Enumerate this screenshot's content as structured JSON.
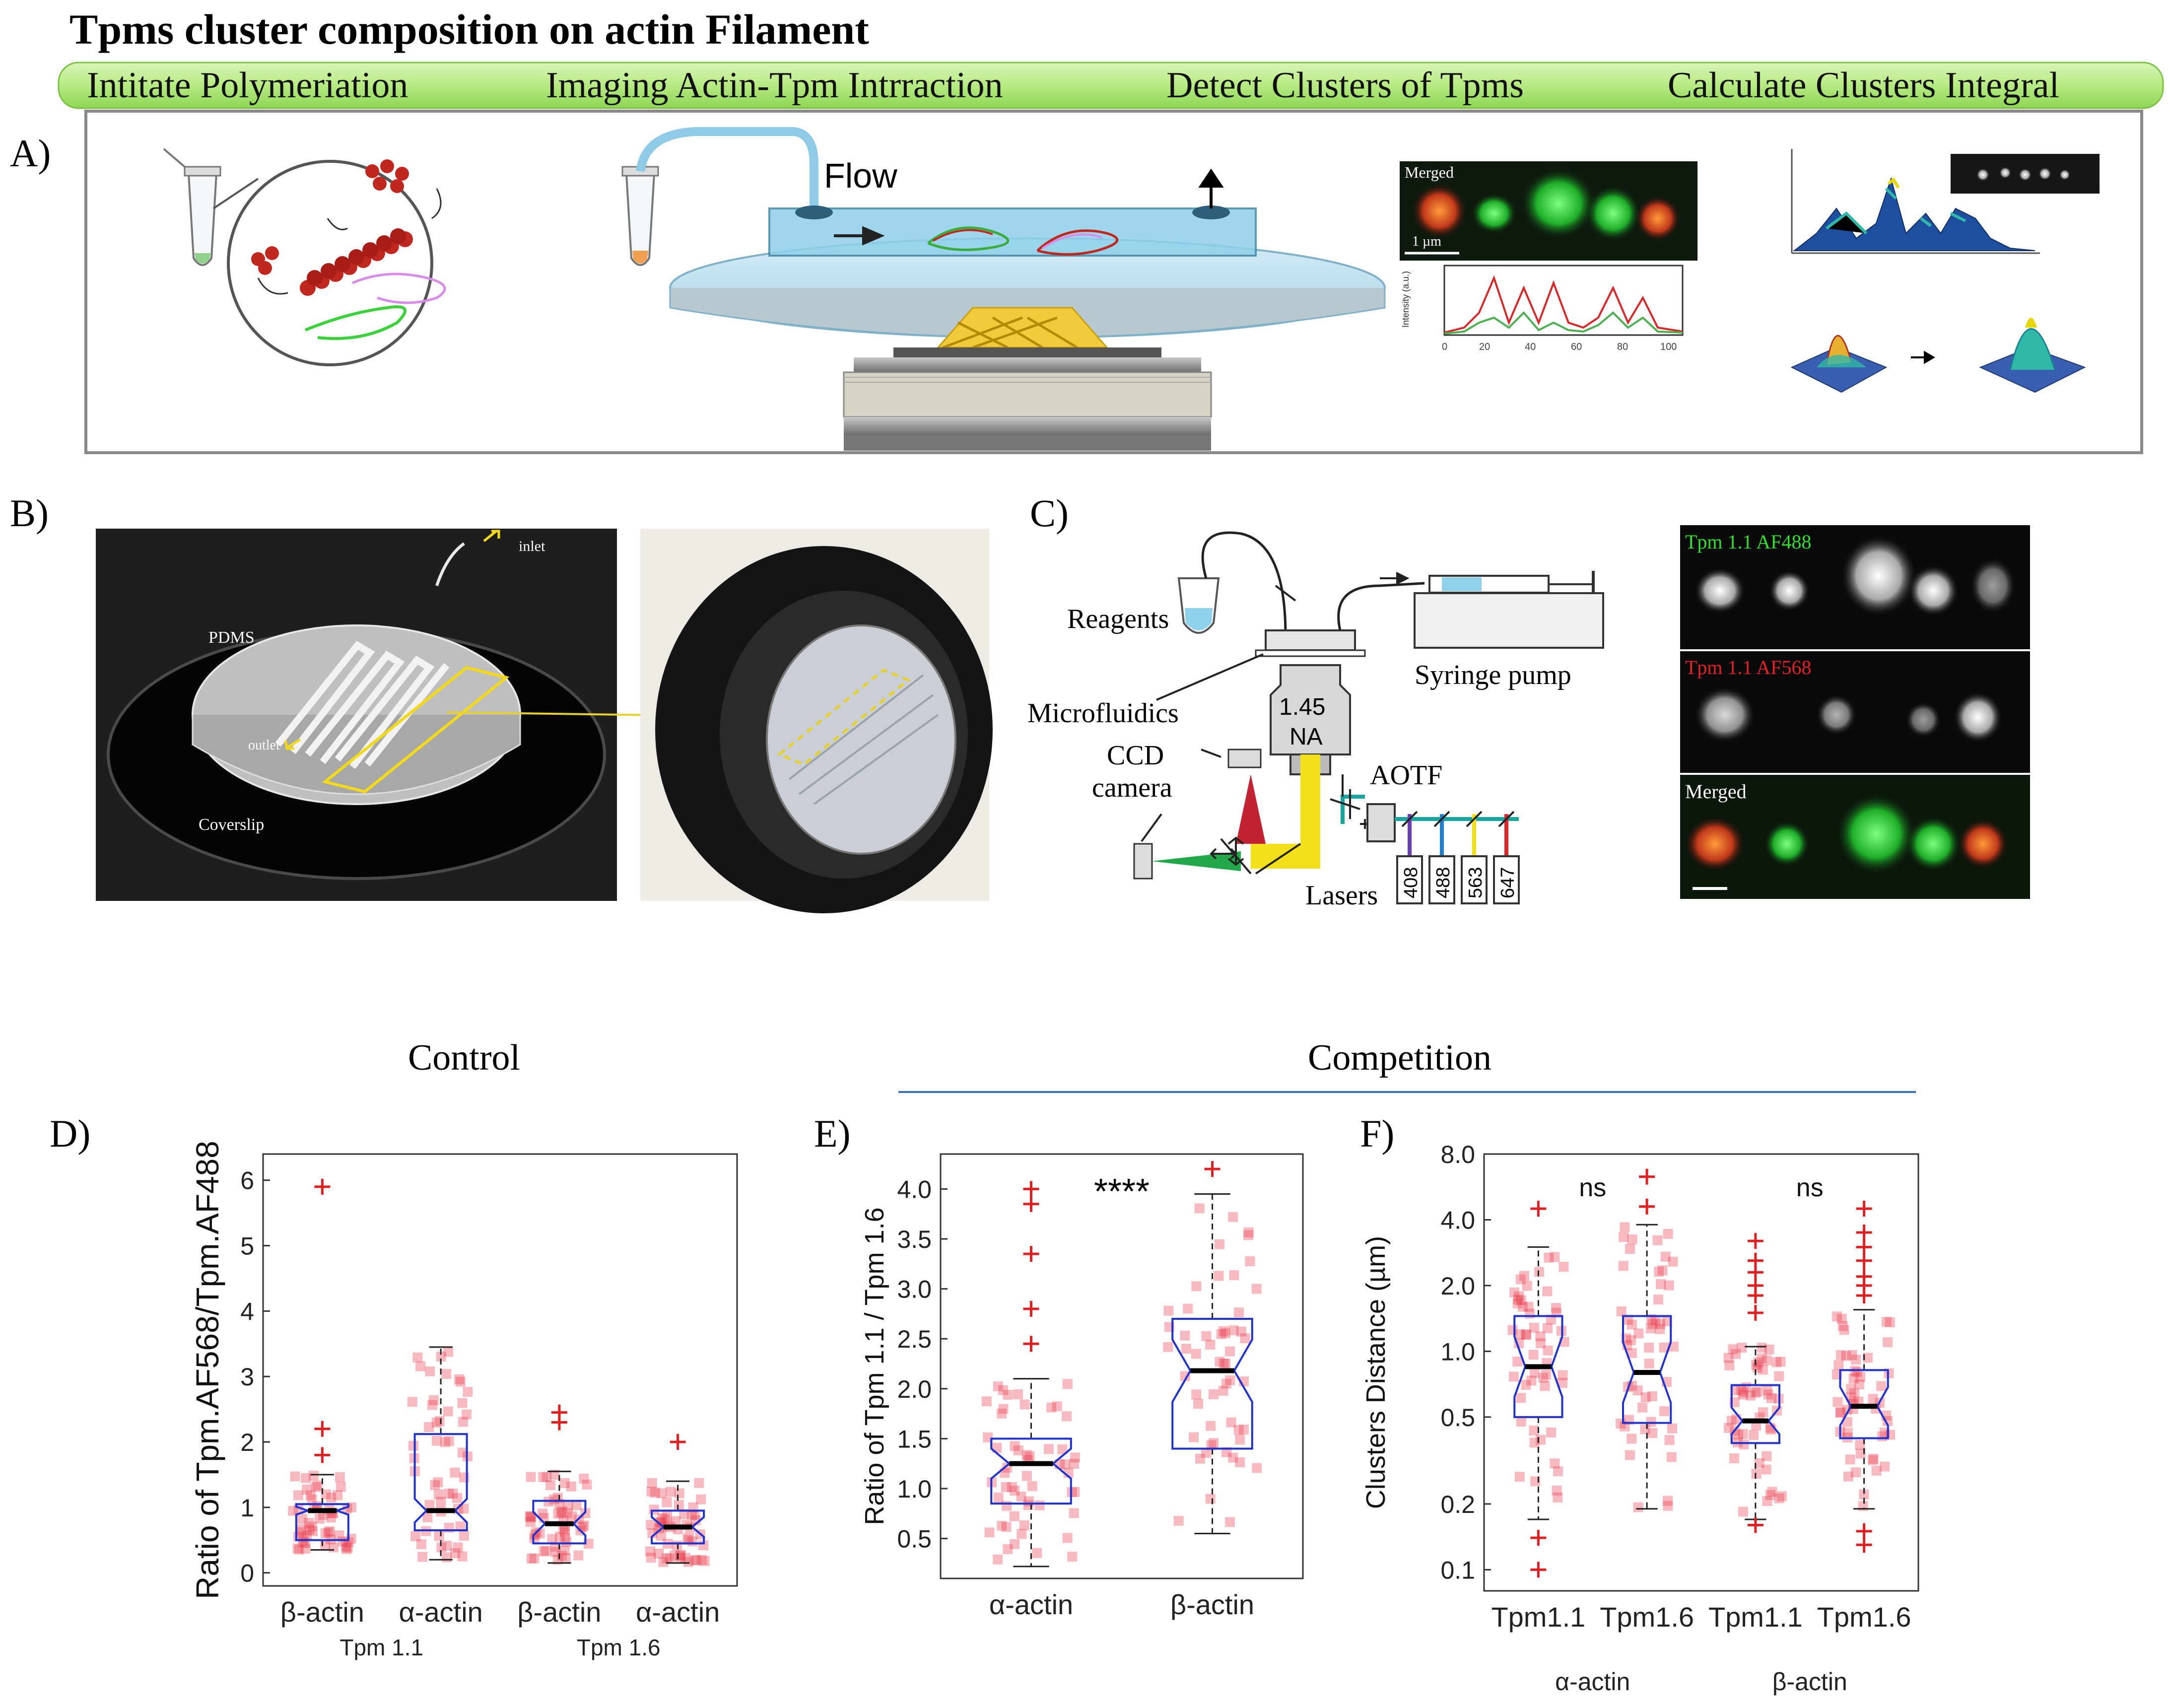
{
  "title": "Tpms cluster composition on actin Filament",
  "steps": [
    "Intitate Polymeriation",
    "Imaging Actin-Tpm Intrraction",
    "Detect Clusters of Tpms",
    "Calculate Clusters Integral"
  ],
  "panel_letters": {
    "A": "A)",
    "B": "B)",
    "C": "C)",
    "D": "D)",
    "E": "E)",
    "F": "F)"
  },
  "panelA": {
    "flow_label": "Flow",
    "merged_label": "Merged",
    "scale_label": "1 µm",
    "intensity_axis": "Intensity (a.u.)",
    "x_ticks": [
      "0",
      "20",
      "40",
      "60",
      "80",
      "100"
    ]
  },
  "panelB": {
    "inlet": "inlet",
    "pdms": "PDMS",
    "outlet": "outlet",
    "coverslip": "Coverslip"
  },
  "panelC": {
    "reagents": "Reagents",
    "syringe_pump": "Syringe pump",
    "microfluidics": "Microfluidics",
    "objective_top": "1.45",
    "objective_bottom": "NA",
    "ccd_line1": "CCD",
    "ccd_line2": "camera",
    "aotf": "AOTF",
    "lasers": "Lasers",
    "laser_lines": [
      "408",
      "488",
      "563",
      "647"
    ],
    "channel_labels": [
      "Tpm 1.1 AF488",
      "Tpm 1.1 AF568",
      "Merged"
    ]
  },
  "section_titles": {
    "control": "Control",
    "competition": "Competition"
  },
  "chart_data": [
    {
      "id": "D",
      "type": "box",
      "ylabel": "Ratio of Tpm.AF568/Tpm.AF488",
      "ylim": [
        -0.2,
        6.4
      ],
      "yticks": [
        0,
        1,
        2,
        3,
        4,
        5,
        6
      ],
      "categories": [
        "β-actin",
        "α-actin",
        "β-actin",
        "α-actin"
      ],
      "groups": [
        "Tpm 1.1",
        "Tpm 1.6"
      ],
      "boxes": [
        {
          "q1": 0.5,
          "median": 0.95,
          "q3": 1.05,
          "whisker_low": 0.35,
          "whisker_high": 1.5,
          "outliers": [
            5.9,
            2.2,
            1.8
          ]
        },
        {
          "q1": 0.65,
          "median": 0.95,
          "q3": 2.12,
          "whisker_low": 0.2,
          "whisker_high": 3.45,
          "outliers": []
        },
        {
          "q1": 0.45,
          "median": 0.75,
          "q3": 1.1,
          "whisker_low": 0.15,
          "whisker_high": 1.55,
          "outliers": [
            2.45,
            2.3
          ]
        },
        {
          "q1": 0.45,
          "median": 0.7,
          "q3": 0.95,
          "whisker_low": 0.15,
          "whisker_high": 1.4,
          "outliers": [
            2.0
          ]
        }
      ]
    },
    {
      "id": "E",
      "type": "box",
      "ylabel": "Ratio of Tpm 1.1 / Tpm 1.6",
      "ylim": [
        0.1,
        4.35
      ],
      "yticks": [
        0.5,
        1.0,
        1.5,
        2.0,
        2.5,
        3.0,
        3.5,
        4.0
      ],
      "ytick_labels": [
        "0.5",
        "1.0",
        "1.5",
        "2.0",
        "2.5",
        "3.0",
        "3.5",
        "4.0"
      ],
      "categories": [
        "α-actin",
        "β-actin"
      ],
      "significance": "****",
      "boxes": [
        {
          "q1": 0.85,
          "median": 1.25,
          "q3": 1.5,
          "whisker_low": 0.22,
          "whisker_high": 2.1,
          "outliers": [
            4.0,
            3.85,
            3.35,
            2.8,
            2.45
          ]
        },
        {
          "q1": 1.4,
          "median": 2.18,
          "q3": 2.7,
          "whisker_low": 0.55,
          "whisker_high": 3.95,
          "outliers": [
            4.2
          ]
        }
      ]
    },
    {
      "id": "F",
      "type": "box",
      "scale": "log",
      "ylabel": "Clusters Distance (µm)",
      "ylim": [
        0.08,
        8.0
      ],
      "yticks": [
        0.1,
        0.2,
        0.5,
        1.0,
        2.0,
        4.0,
        8.0
      ],
      "ytick_labels": [
        "0.1",
        "0.2",
        "0.5",
        "1.0",
        "2.0",
        "4.0",
        "8.0"
      ],
      "categories": [
        "Tpm1.1",
        "Tpm1.6",
        "Tpm1.1",
        "Tpm1.6"
      ],
      "groups": [
        "α-actin",
        "β-actin"
      ],
      "significance": [
        "ns",
        "ns"
      ],
      "boxes": [
        {
          "q1": 0.5,
          "median": 0.85,
          "q3": 1.45,
          "whisker_low": 0.17,
          "whisker_high": 3.0,
          "outliers": [
            4.5,
            0.14,
            0.1
          ]
        },
        {
          "q1": 0.47,
          "median": 0.8,
          "q3": 1.45,
          "whisker_low": 0.19,
          "whisker_high": 3.8,
          "outliers": [
            6.3,
            4.6
          ]
        },
        {
          "q1": 0.38,
          "median": 0.48,
          "q3": 0.7,
          "whisker_low": 0.17,
          "whisker_high": 1.05,
          "outliers": [
            3.2,
            2.6,
            2.3,
            2.0,
            1.8,
            1.5,
            0.16
          ]
        },
        {
          "q1": 0.4,
          "median": 0.56,
          "q3": 0.82,
          "whisker_low": 0.19,
          "whisker_high": 1.55,
          "outliers": [
            4.5,
            3.5,
            3.0,
            2.6,
            2.2,
            2.0,
            1.8,
            0.15,
            0.13
          ]
        }
      ]
    }
  ]
}
